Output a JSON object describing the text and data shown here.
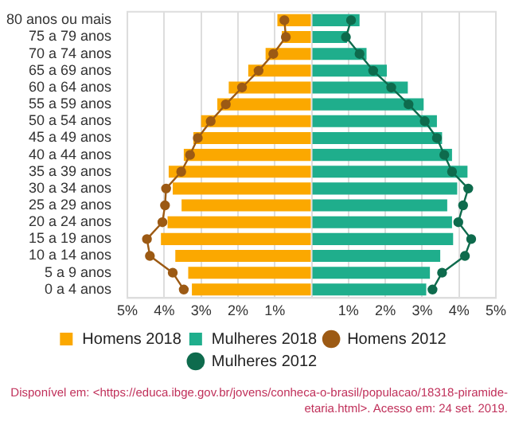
{
  "chart_data": {
    "type": "bar",
    "orientation": "horizontal",
    "categories": [
      "80 anos ou mais",
      "75 a 79 anos",
      "70 a 74 anos",
      "65 a 69 anos",
      "60 a 64 anos",
      "55 a 59 anos",
      "50 a 54 anos",
      "45 a 49 anos",
      "40 a 44 anos",
      "35 a 39 anos",
      "30 a 34 anos",
      "25 a 29 anos",
      "20 a 24 anos",
      "15 a 19 anos",
      "10 a 14 anos",
      "5 a 9 anos",
      "0 a 4 anos"
    ],
    "series": [
      {
        "name": "Homens 2018",
        "color": "#fba800",
        "values": [
          -0.93,
          -0.81,
          -1.25,
          -1.72,
          -2.25,
          -2.56,
          -3.0,
          -3.21,
          -3.47,
          -3.88,
          -3.77,
          -3.53,
          -3.91,
          -4.09,
          -3.7,
          -3.35,
          -3.25
        ]
      },
      {
        "name": "Mulheres 2018",
        "color": "#1fae8c",
        "values": [
          1.3,
          0.96,
          1.49,
          2.04,
          2.61,
          3.04,
          3.4,
          3.54,
          3.81,
          4.23,
          3.95,
          3.68,
          3.81,
          3.84,
          3.49,
          3.21,
          3.11
        ]
      },
      {
        "name": "Homens 2012",
        "type": "line",
        "color": "#9c5a14",
        "marker": "circle",
        "values": [
          -0.74,
          -0.7,
          -1.04,
          -1.44,
          -1.89,
          -2.33,
          -2.74,
          -3.09,
          -3.3,
          -3.54,
          -3.95,
          -3.98,
          -4.05,
          -4.47,
          -4.39,
          -3.77,
          -3.47
        ]
      },
      {
        "name": "Mulheres 2012",
        "type": "line",
        "color": "#0e6b4d",
        "marker": "circle",
        "values": [
          1.07,
          0.93,
          1.3,
          1.67,
          2.16,
          2.63,
          3.07,
          3.4,
          3.6,
          3.81,
          4.25,
          4.11,
          3.98,
          4.33,
          4.16,
          3.54,
          3.28
        ]
      }
    ],
    "xlim": [
      -5,
      5
    ],
    "xticks": [
      {
        "value": -5,
        "label": "5%"
      },
      {
        "value": -4,
        "label": "4%"
      },
      {
        "value": -3,
        "label": "3%"
      },
      {
        "value": -2,
        "label": "2%"
      },
      {
        "value": -1,
        "label": "1%"
      },
      {
        "value": 0,
        "label": null
      },
      {
        "value": 1,
        "label": "1%"
      },
      {
        "value": 2,
        "label": "2%"
      },
      {
        "value": 3,
        "label": "3%"
      },
      {
        "value": 4,
        "label": "4%"
      },
      {
        "value": 5,
        "label": "5%"
      }
    ],
    "grid": "x",
    "legend": "bottom",
    "stacked": true,
    "annotations": [
      "Disponível em: <https://educa.ibge.gov.br/jovens/conheca-o-brasil/populacao/18318-piramide-etaria.html>. Acesso em: 24 set. 2019."
    ]
  }
}
